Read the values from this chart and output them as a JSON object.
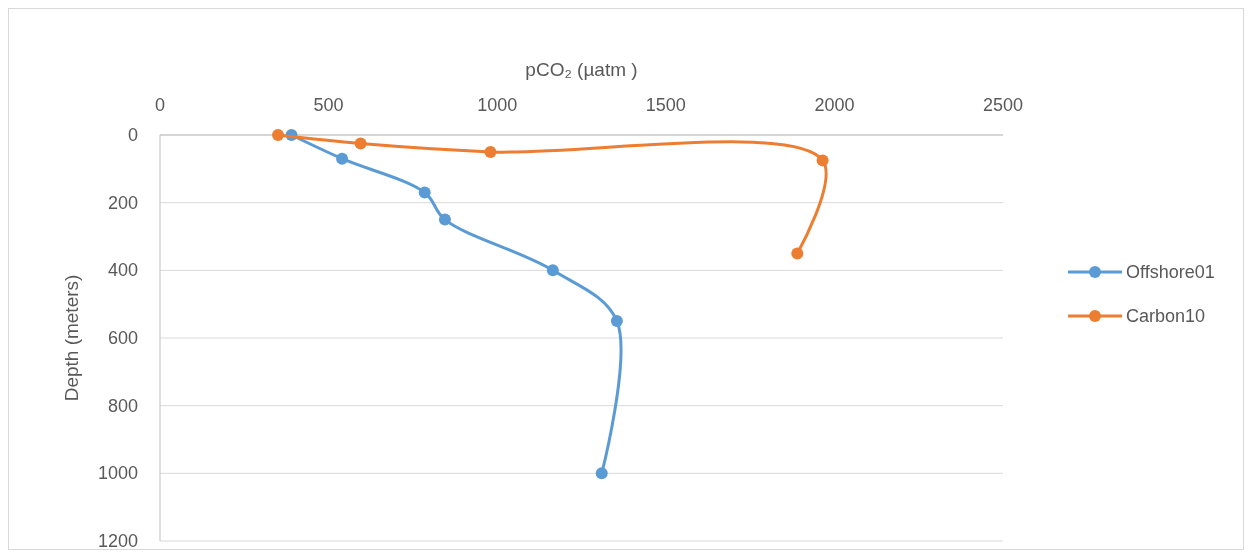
{
  "chart_data": {
    "type": "line",
    "xlabel": "pCO₂ (µatm )",
    "ylabel": "Depth (meters)",
    "xlim": [
      0,
      2500
    ],
    "xticks": [
      0,
      500,
      1000,
      1500,
      2000,
      2500
    ],
    "ylim": [
      1200,
      0
    ],
    "yticks": [
      0,
      200,
      400,
      600,
      800,
      1000,
      1200
    ],
    "grid": "y",
    "legend": "right",
    "marker": "circle",
    "line_style": "solid",
    "series": [
      {
        "name": "Offshore01",
        "color": "#5b9bd5",
        "x": [
          390,
          540,
          785,
          845,
          1165,
          1355,
          1310
        ],
        "values": [
          0,
          70,
          170,
          250,
          400,
          550,
          1000
        ]
      },
      {
        "name": "Carbon10",
        "color": "#ed7d31",
        "x": [
          350,
          595,
          980,
          1965,
          1890
        ],
        "values": [
          0,
          25,
          50,
          75,
          350
        ]
      }
    ]
  }
}
